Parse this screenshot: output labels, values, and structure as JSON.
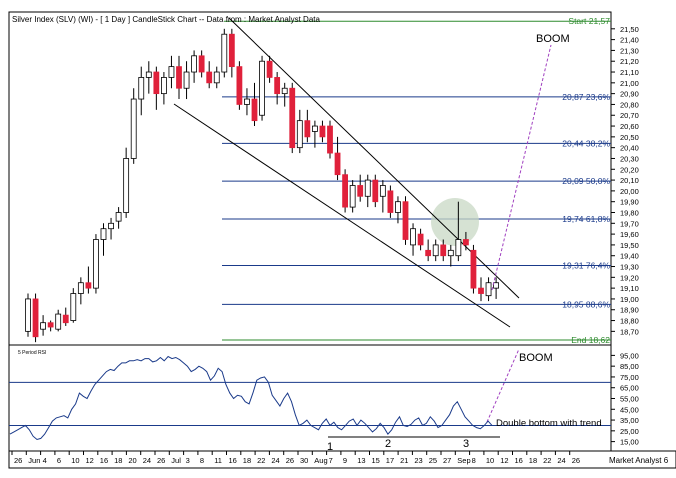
{
  "chart_data": {
    "type": "candlestick",
    "title": "Silver Index (SLV) (WI) -  [ 1 Day ] CandleStick Chart -- Data from : Market Analyst Data",
    "price_axis": {
      "min": 18.62,
      "max": 21.6,
      "ticks": [
        "21,50",
        "21,40",
        "21,30",
        "21,20",
        "21,10",
        "21,00",
        "20,90",
        "20,80",
        "20,70",
        "20,60",
        "20,50",
        "20,40",
        "20,30",
        "20,20",
        "20,10",
        "20,00",
        "19,90",
        "19,80",
        "19,70",
        "19,60",
        "19,50",
        "19,40",
        "19,30",
        "19,20",
        "19,10",
        "19,00",
        "18,90",
        "18,80",
        "18,70"
      ]
    },
    "fib_levels": [
      {
        "value": 21.57,
        "label": "Start 21,57",
        "color": "#2e8b2e"
      },
      {
        "value": 20.87,
        "label": "20,87 23,6%",
        "color": "#1a3a8a"
      },
      {
        "value": 20.44,
        "label": "20,44 38,2%",
        "color": "#1a3a8a"
      },
      {
        "value": 20.09,
        "label": "20,09 50,0%",
        "color": "#1a3a8a"
      },
      {
        "value": 19.74,
        "label": "19,74 61,8%",
        "color": "#1a3a8a"
      },
      {
        "value": 19.31,
        "label": "19,31 76,4%",
        "color": "#1a3a8a"
      },
      {
        "value": 18.95,
        "label": "18,95 88,6%",
        "color": "#1a3a8a"
      },
      {
        "value": 18.62,
        "label": "End 18,62",
        "color": "#2e8b2e"
      }
    ],
    "candles": [
      {
        "o": 18.7,
        "h": 19.05,
        "l": 18.65,
        "c": 19.0
      },
      {
        "o": 19.0,
        "h": 19.05,
        "l": 18.6,
        "c": 18.65
      },
      {
        "o": 18.72,
        "h": 18.85,
        "l": 18.66,
        "c": 18.78
      },
      {
        "o": 18.78,
        "h": 18.8,
        "l": 18.7,
        "c": 18.74
      },
      {
        "o": 18.72,
        "h": 18.9,
        "l": 18.7,
        "c": 18.86
      },
      {
        "o": 18.85,
        "h": 18.92,
        "l": 18.75,
        "c": 18.78
      },
      {
        "o": 18.8,
        "h": 19.1,
        "l": 18.78,
        "c": 19.05
      },
      {
        "o": 19.05,
        "h": 19.2,
        "l": 18.95,
        "c": 19.15
      },
      {
        "o": 19.15,
        "h": 19.3,
        "l": 19.05,
        "c": 19.1
      },
      {
        "o": 19.1,
        "h": 19.6,
        "l": 19.05,
        "c": 19.55
      },
      {
        "o": 19.55,
        "h": 19.7,
        "l": 19.4,
        "c": 19.65
      },
      {
        "o": 19.65,
        "h": 19.75,
        "l": 19.55,
        "c": 19.7
      },
      {
        "o": 19.72,
        "h": 19.85,
        "l": 19.65,
        "c": 19.8
      },
      {
        "o": 19.8,
        "h": 20.4,
        "l": 19.75,
        "c": 20.3
      },
      {
        "o": 20.3,
        "h": 20.95,
        "l": 20.25,
        "c": 20.85
      },
      {
        "o": 20.85,
        "h": 21.15,
        "l": 20.7,
        "c": 21.05
      },
      {
        "o": 21.05,
        "h": 21.2,
        "l": 20.9,
        "c": 21.1
      },
      {
        "o": 21.1,
        "h": 21.15,
        "l": 20.75,
        "c": 20.9
      },
      {
        "o": 20.9,
        "h": 21.1,
        "l": 20.8,
        "c": 21.05
      },
      {
        "o": 21.05,
        "h": 21.25,
        "l": 20.95,
        "c": 21.15
      },
      {
        "o": 21.15,
        "h": 21.25,
        "l": 20.85,
        "c": 20.95
      },
      {
        "o": 20.95,
        "h": 21.2,
        "l": 20.85,
        "c": 21.1
      },
      {
        "o": 21.1,
        "h": 21.3,
        "l": 21.0,
        "c": 21.25
      },
      {
        "o": 21.25,
        "h": 21.3,
        "l": 21.05,
        "c": 21.1
      },
      {
        "o": 21.1,
        "h": 21.2,
        "l": 20.95,
        "c": 21.0
      },
      {
        "o": 21.0,
        "h": 21.15,
        "l": 20.95,
        "c": 21.1
      },
      {
        "o": 21.1,
        "h": 21.5,
        "l": 21.05,
        "c": 21.45
      },
      {
        "o": 21.45,
        "h": 21.5,
        "l": 21.05,
        "c": 21.15
      },
      {
        "o": 21.15,
        "h": 21.2,
        "l": 20.75,
        "c": 20.8
      },
      {
        "o": 20.8,
        "h": 20.95,
        "l": 20.7,
        "c": 20.85
      },
      {
        "o": 20.85,
        "h": 21.0,
        "l": 20.6,
        "c": 20.65
      },
      {
        "o": 20.7,
        "h": 21.25,
        "l": 20.65,
        "c": 21.2
      },
      {
        "o": 21.2,
        "h": 21.25,
        "l": 21.0,
        "c": 21.05
      },
      {
        "o": 21.05,
        "h": 21.1,
        "l": 20.8,
        "c": 20.9
      },
      {
        "o": 20.9,
        "h": 21.0,
        "l": 20.78,
        "c": 20.95
      },
      {
        "o": 20.95,
        "h": 21.0,
        "l": 20.35,
        "c": 20.4
      },
      {
        "o": 20.4,
        "h": 20.75,
        "l": 20.35,
        "c": 20.65
      },
      {
        "o": 20.65,
        "h": 20.75,
        "l": 20.45,
        "c": 20.5
      },
      {
        "o": 20.55,
        "h": 20.65,
        "l": 20.4,
        "c": 20.6
      },
      {
        "o": 20.6,
        "h": 20.65,
        "l": 20.45,
        "c": 20.5
      },
      {
        "o": 20.6,
        "h": 20.65,
        "l": 20.3,
        "c": 20.35
      },
      {
        "o": 20.35,
        "h": 20.5,
        "l": 20.1,
        "c": 20.15
      },
      {
        "o": 20.15,
        "h": 20.2,
        "l": 19.8,
        "c": 19.85
      },
      {
        "o": 19.85,
        "h": 20.1,
        "l": 19.8,
        "c": 20.05
      },
      {
        "o": 20.05,
        "h": 20.15,
        "l": 19.9,
        "c": 19.95
      },
      {
        "o": 19.95,
        "h": 20.15,
        "l": 19.85,
        "c": 20.1
      },
      {
        "o": 20.1,
        "h": 20.15,
        "l": 19.85,
        "c": 19.9
      },
      {
        "o": 19.95,
        "h": 20.1,
        "l": 19.8,
        "c": 20.05
      },
      {
        "o": 20.0,
        "h": 20.05,
        "l": 19.75,
        "c": 19.8
      },
      {
        "o": 19.8,
        "h": 19.95,
        "l": 19.7,
        "c": 19.9
      },
      {
        "o": 19.9,
        "h": 19.95,
        "l": 19.5,
        "c": 19.55
      },
      {
        "o": 19.5,
        "h": 19.7,
        "l": 19.4,
        "c": 19.65
      },
      {
        "o": 19.6,
        "h": 19.65,
        "l": 19.45,
        "c": 19.5
      },
      {
        "o": 19.45,
        "h": 19.55,
        "l": 19.35,
        "c": 19.4
      },
      {
        "o": 19.4,
        "h": 19.55,
        "l": 19.35,
        "c": 19.5
      },
      {
        "o": 19.5,
        "h": 19.55,
        "l": 19.35,
        "c": 19.4
      },
      {
        "o": 19.4,
        "h": 19.5,
        "l": 19.3,
        "c": 19.45
      },
      {
        "o": 19.4,
        "h": 19.9,
        "l": 19.35,
        "c": 19.55
      },
      {
        "o": 19.55,
        "h": 19.62,
        "l": 19.45,
        "c": 19.5
      },
      {
        "o": 19.45,
        "h": 19.5,
        "l": 19.05,
        "c": 19.1
      },
      {
        "o": 19.1,
        "h": 19.2,
        "l": 18.98,
        "c": 19.05
      },
      {
        "o": 19.03,
        "h": 19.2,
        "l": 18.98,
        "c": 19.15
      },
      {
        "o": 19.1,
        "h": 19.2,
        "l": 19.0,
        "c": 19.15
      }
    ],
    "annotations": {
      "boom_top": "BOOM",
      "boom_bottom": "BOOM",
      "rsi_label": "5 Period RSI",
      "double_bottom": "Double bottom with trend",
      "bottom_markers": [
        "1",
        "2",
        "3"
      ],
      "watermark": "Market Analyst 6"
    },
    "rsi_axis": {
      "min": 10,
      "max": 100,
      "ticks": [
        "95,00",
        "85,00",
        "75,00",
        "65,00",
        "55,00",
        "45,00",
        "35,00",
        "25,00",
        "15,00"
      ],
      "ticks_values": [
        95,
        85,
        75,
        65,
        55,
        45,
        35,
        25,
        15
      ],
      "levels": [
        70,
        30
      ]
    },
    "rsi": [
      22,
      24,
      26,
      28,
      30,
      26,
      20,
      17,
      18,
      22,
      28,
      34,
      37,
      38,
      39,
      37,
      45,
      50,
      60,
      57,
      55,
      62,
      68,
      72,
      76,
      80,
      82,
      81,
      85,
      88,
      88,
      90,
      90,
      91,
      90,
      92,
      92,
      89,
      90,
      93,
      90,
      94,
      92,
      93,
      91,
      88,
      85,
      80,
      82,
      85,
      83,
      80,
      72,
      76,
      83,
      80,
      68,
      60,
      55,
      58,
      57,
      52,
      50,
      60,
      72,
      74,
      75,
      70,
      58,
      53,
      48,
      55,
      60,
      52,
      40,
      30,
      32,
      35,
      30,
      28,
      26,
      32,
      36,
      30,
      33,
      28,
      26,
      30,
      34,
      36,
      30,
      35,
      32,
      28,
      24,
      27,
      32,
      28,
      22,
      26,
      33,
      38,
      30,
      29,
      31,
      35,
      37,
      30,
      32,
      38,
      34,
      28,
      30,
      35,
      40,
      48,
      52,
      45,
      38,
      34,
      30,
      28,
      27,
      30,
      34,
      30
    ],
    "x_axis_labels": [
      "26",
      "Jun",
      "4",
      "6",
      "10",
      "12",
      "16",
      "18",
      "20",
      "24",
      "26",
      "Jul",
      "3",
      "8",
      "11",
      "16",
      "18",
      "22",
      "24",
      "26",
      "30",
      "Aug",
      "7",
      "9",
      "13",
      "15",
      "17",
      "21",
      "23",
      "25",
      "27",
      "Sep",
      "8",
      "10",
      "12",
      "16",
      "18",
      "22",
      "24",
      "26"
    ]
  }
}
